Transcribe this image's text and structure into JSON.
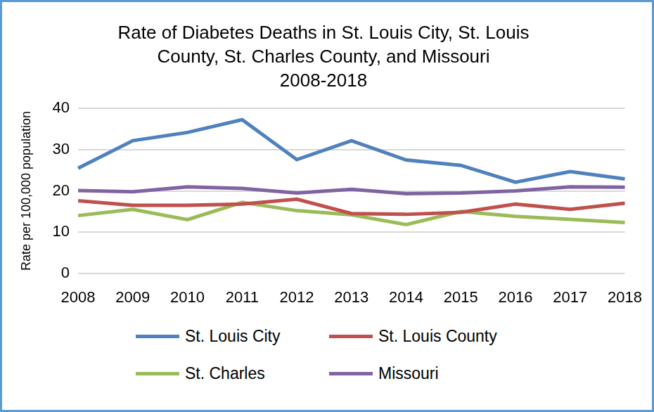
{
  "chart_data": {
    "type": "line",
    "title": [
      "Rate of Diabetes Deaths in St. Louis City, St. Louis",
      "County, St. Charles County, and Missouri",
      "2008-2018"
    ],
    "y_label": "Rate per 100,000 population",
    "categories": [
      "2008",
      "2009",
      "2010",
      "2011",
      "2012",
      "2013",
      "2014",
      "2015",
      "2016",
      "2017",
      "2018"
    ],
    "series": [
      {
        "name": "St. Louis City",
        "color": "#4F81BD",
        "values": [
          25.5,
          32.2,
          34.2,
          37.3,
          27.6,
          32.2,
          27.5,
          26.2,
          22.1,
          24.7,
          22.9
        ]
      },
      {
        "name": "St. Louis County",
        "color": "#C0504D",
        "values": [
          17.6,
          16.5,
          16.5,
          16.8,
          18.0,
          14.5,
          14.3,
          14.8,
          16.8,
          15.5,
          17.0
        ]
      },
      {
        "name": "St. Charles",
        "color": "#9BBB59",
        "values": [
          14.0,
          15.5,
          13.0,
          17.2,
          15.2,
          14.2,
          11.8,
          15.0,
          13.8,
          13.1,
          12.3
        ]
      },
      {
        "name": "Missouri",
        "color": "#8064A2",
        "values": [
          20.1,
          19.8,
          21.0,
          20.6,
          19.5,
          20.4,
          19.3,
          19.5,
          20.0,
          21.0,
          20.9
        ]
      }
    ],
    "ylim": [
      0,
      40
    ],
    "yticks": [
      0,
      10,
      20,
      30,
      40
    ],
    "grid": true,
    "legend": "bottom"
  }
}
